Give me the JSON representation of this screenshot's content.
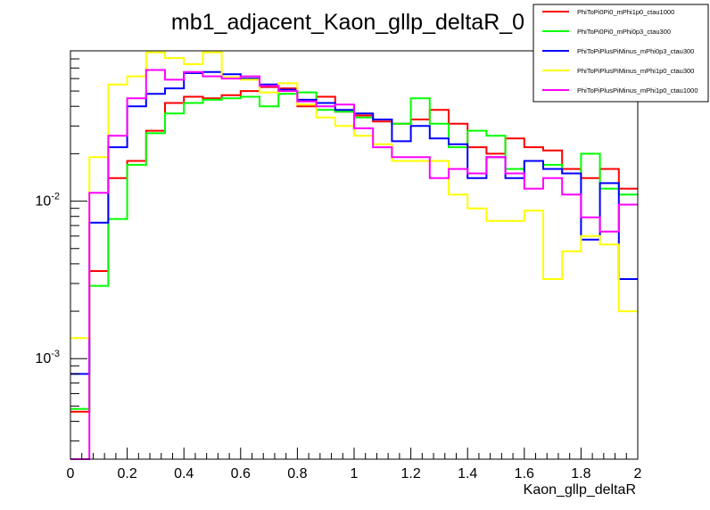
{
  "chart_data": {
    "type": "step-histogram",
    "title": "mb1_adjacent_Kaon_gllp_deltaR_0",
    "xlabel": "Kaon_gllp_deltaR",
    "ylabel": "",
    "xlim": [
      0,
      2
    ],
    "ylim": [
      0.00023,
      0.09
    ],
    "yscale": "log",
    "grid": false,
    "legend_position": "top-right",
    "x_ticks": [
      "0",
      "0.2",
      "0.4",
      "0.6",
      "0.8",
      "1",
      "1.2",
      "1.4",
      "1.6",
      "1.8",
      "2"
    ],
    "y_ticks": [
      {
        "base": "10",
        "exp": "-3",
        "value": 0.001
      },
      {
        "base": "10",
        "exp": "-2",
        "value": 0.01
      }
    ],
    "bin_width": 0.0667,
    "series": [
      {
        "name": "PhiToPi0Pi0_mPhi1p0_ctau1000",
        "color": "#ff0000",
        "values": [
          0.00046,
          0.0036,
          0.014,
          0.018,
          0.028,
          0.042,
          0.046,
          0.045,
          0.047,
          0.05,
          0.053,
          0.052,
          0.04,
          0.046,
          0.037,
          0.035,
          0.032,
          0.031,
          0.033,
          0.038,
          0.031,
          0.022,
          0.02,
          0.025,
          0.022,
          0.021,
          0.016,
          0.014,
          0.016,
          0.012
        ]
      },
      {
        "name": "PhiToPi0Pi0_mPhi0p3_ctau300",
        "color": "#00ff00",
        "values": [
          0.00048,
          0.0029,
          0.0077,
          0.017,
          0.027,
          0.036,
          0.042,
          0.044,
          0.045,
          0.046,
          0.04,
          0.048,
          0.049,
          0.038,
          0.037,
          0.034,
          0.033,
          0.031,
          0.045,
          0.031,
          0.022,
          0.028,
          0.026,
          0.016,
          0.018,
          0.017,
          0.015,
          0.02,
          0.012,
          0.011
        ]
      },
      {
        "name": "PhiToPiPlusPiMinus_mPhi0p3_ctau300",
        "color": "#0000ff",
        "values": [
          0.0008,
          0.0073,
          0.022,
          0.04,
          0.048,
          0.052,
          0.065,
          0.066,
          0.064,
          0.06,
          0.055,
          0.051,
          0.044,
          0.042,
          0.038,
          0.036,
          0.033,
          0.024,
          0.03,
          0.025,
          0.023,
          0.014,
          0.019,
          0.014,
          0.018,
          0.016,
          0.015,
          0.0057,
          0.013,
          0.0032
        ]
      },
      {
        "name": "PhiToPiPlusPiMinus_mPhi1p0_ctau300",
        "color": "#ffff00",
        "values": [
          0.00135,
          0.019,
          0.055,
          0.062,
          0.088,
          0.081,
          0.074,
          0.088,
          0.061,
          0.059,
          0.049,
          0.056,
          0.041,
          0.034,
          0.03,
          0.026,
          0.023,
          0.018,
          0.018,
          0.018,
          0.011,
          0.009,
          0.0075,
          0.0075,
          0.0087,
          0.0032,
          0.0048,
          0.006,
          0.0053,
          0.002
        ]
      },
      {
        "name": "PhiToPiPlusPiMinus_mPhi1p0_ctau1000",
        "color": "#ff00ff",
        "values": [
          0.00023,
          0.0113,
          0.026,
          0.045,
          0.068,
          0.059,
          0.066,
          0.062,
          0.06,
          0.062,
          0.054,
          0.05,
          0.043,
          0.04,
          0.041,
          0.029,
          0.022,
          0.019,
          0.019,
          0.014,
          0.016,
          0.015,
          0.019,
          0.015,
          0.012,
          0.014,
          0.011,
          0.0079,
          0.0064,
          0.0095
        ]
      }
    ]
  }
}
